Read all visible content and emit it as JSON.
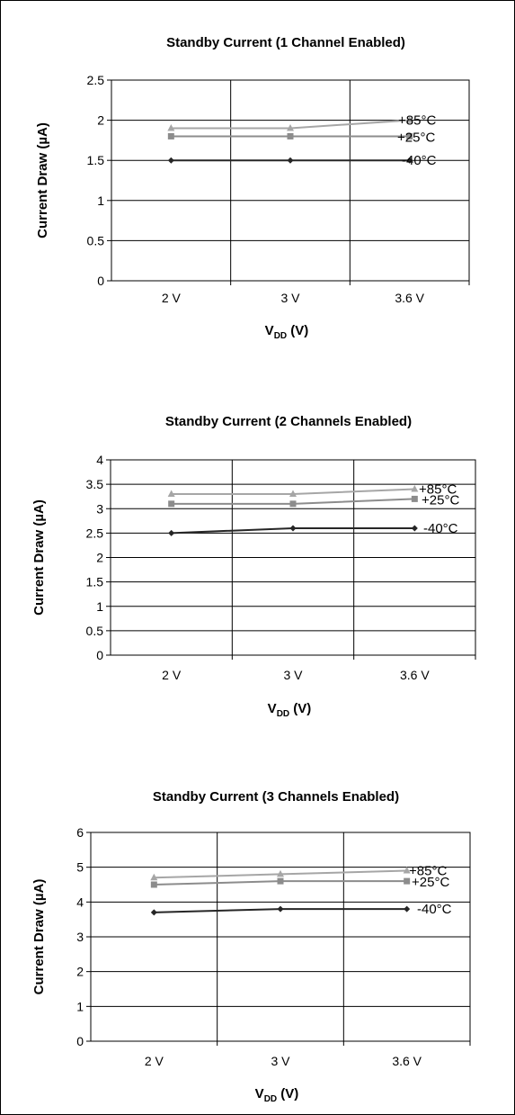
{
  "chart_data": [
    {
      "type": "line",
      "title": "Standby Current (1 Channel Enabled)",
      "xlabel": "V",
      "xlabel_sub": "DD",
      "xlabel_suffix": " (V)",
      "ylabel": "Current Draw (µA)",
      "categories": [
        "2 V",
        "3 V",
        "3.6 V"
      ],
      "ylim": [
        0,
        2.5
      ],
      "yticks": [
        "0",
        "0.5",
        "1",
        "1.5",
        "2",
        "2.5"
      ],
      "ytick_values": [
        0,
        0.5,
        1,
        1.5,
        2,
        2.5
      ],
      "grid": true,
      "series": [
        {
          "name": "+85°C",
          "values": [
            1.9,
            1.9,
            2.0
          ],
          "color": "#a6a6a6",
          "marker": "triangle"
        },
        {
          "name": "+25°C",
          "values": [
            1.8,
            1.8,
            1.8
          ],
          "color": "#8c8c8c",
          "marker": "square"
        },
        {
          "name": "-40°C",
          "values": [
            1.5,
            1.5,
            1.5
          ],
          "color": "#262626",
          "marker": "diamond"
        }
      ]
    },
    {
      "type": "line",
      "title": "Standby Current (2 Channels Enabled)",
      "xlabel": "V",
      "xlabel_sub": "DD",
      "xlabel_suffix": " (V)",
      "ylabel": "Current Draw (µA)",
      "categories": [
        "2 V",
        "3 V",
        "3.6 V"
      ],
      "ylim": [
        0,
        4
      ],
      "yticks": [
        "0",
        "0.5",
        "1",
        "1.5",
        "2",
        "2.5",
        "3",
        "3.5",
        "4"
      ],
      "ytick_values": [
        0,
        0.5,
        1,
        1.5,
        2,
        2.5,
        3,
        3.5,
        4
      ],
      "grid": true,
      "series": [
        {
          "name": "+85°C",
          "values": [
            3.3,
            3.3,
            3.4
          ],
          "color": "#a6a6a6",
          "marker": "triangle"
        },
        {
          "name": "+25°C",
          "values": [
            3.1,
            3.1,
            3.2
          ],
          "color": "#8c8c8c",
          "marker": "square"
        },
        {
          "name": "-40°C",
          "values": [
            2.5,
            2.6,
            2.6
          ],
          "color": "#262626",
          "marker": "diamond"
        }
      ]
    },
    {
      "type": "line",
      "title": "Standby Current (3 Channels Enabled)",
      "xlabel": "V",
      "xlabel_sub": "DD",
      "xlabel_suffix": " (V)",
      "ylabel": "Current Draw (µA)",
      "categories": [
        "2 V",
        "3 V",
        "3.6 V"
      ],
      "ylim": [
        0,
        6
      ],
      "yticks": [
        "0",
        "1",
        "2",
        "3",
        "4",
        "5",
        "6"
      ],
      "ytick_values": [
        0,
        1,
        2,
        3,
        4,
        5,
        6
      ],
      "grid": true,
      "series": [
        {
          "name": "+85°C",
          "values": [
            4.7,
            4.8,
            4.9
          ],
          "color": "#a6a6a6",
          "marker": "triangle"
        },
        {
          "name": "+25°C",
          "values": [
            4.5,
            4.6,
            4.6
          ],
          "color": "#8c8c8c",
          "marker": "square"
        },
        {
          "name": "-40°C",
          "values": [
            3.7,
            3.8,
            3.8
          ],
          "color": "#262626",
          "marker": "diamond"
        }
      ]
    }
  ]
}
